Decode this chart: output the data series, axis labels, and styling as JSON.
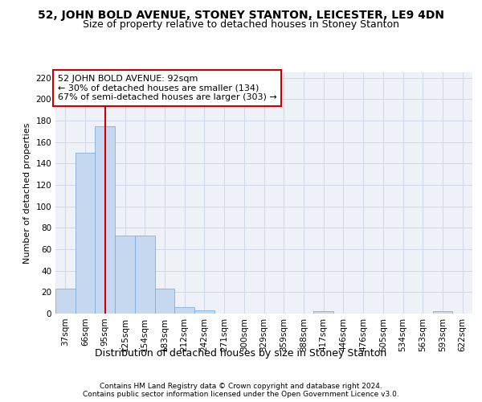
{
  "title1": "52, JOHN BOLD AVENUE, STONEY STANTON, LEICESTER, LE9 4DN",
  "title2": "Size of property relative to detached houses in Stoney Stanton",
  "xlabel": "Distribution of detached houses by size in Stoney Stanton",
  "ylabel": "Number of detached properties",
  "categories": [
    "37sqm",
    "66sqm",
    "95sqm",
    "125sqm",
    "154sqm",
    "183sqm",
    "212sqm",
    "242sqm",
    "271sqm",
    "300sqm",
    "329sqm",
    "359sqm",
    "388sqm",
    "417sqm",
    "446sqm",
    "476sqm",
    "505sqm",
    "534sqm",
    "563sqm",
    "593sqm",
    "622sqm"
  ],
  "values": [
    23,
    150,
    175,
    73,
    73,
    23,
    6,
    3,
    0,
    0,
    0,
    0,
    0,
    2,
    0,
    0,
    0,
    0,
    0,
    2,
    0
  ],
  "bar_color": "#c5d8f0",
  "bar_edge_color": "#6fa8d8",
  "grid_color": "#d0d8e8",
  "background_color": "#eef2f8",
  "annotation_text": "52 JOHN BOLD AVENUE: 92sqm\n← 30% of detached houses are smaller (134)\n67% of semi-detached houses are larger (303) →",
  "annotation_box_color": "#ffffff",
  "annotation_border_color": "#cc0000",
  "red_line_x": 2,
  "ylim": [
    0,
    225
  ],
  "yticks": [
    0,
    20,
    40,
    60,
    80,
    100,
    120,
    140,
    160,
    180,
    200,
    220
  ],
  "footer1": "Contains HM Land Registry data © Crown copyright and database right 2024.",
  "footer2": "Contains public sector information licensed under the Open Government Licence v3.0.",
  "title1_fontsize": 10,
  "title2_fontsize": 9,
  "xlabel_fontsize": 9,
  "ylabel_fontsize": 8,
  "tick_fontsize": 7.5,
  "annotation_fontsize": 8,
  "footer_fontsize": 6.5
}
